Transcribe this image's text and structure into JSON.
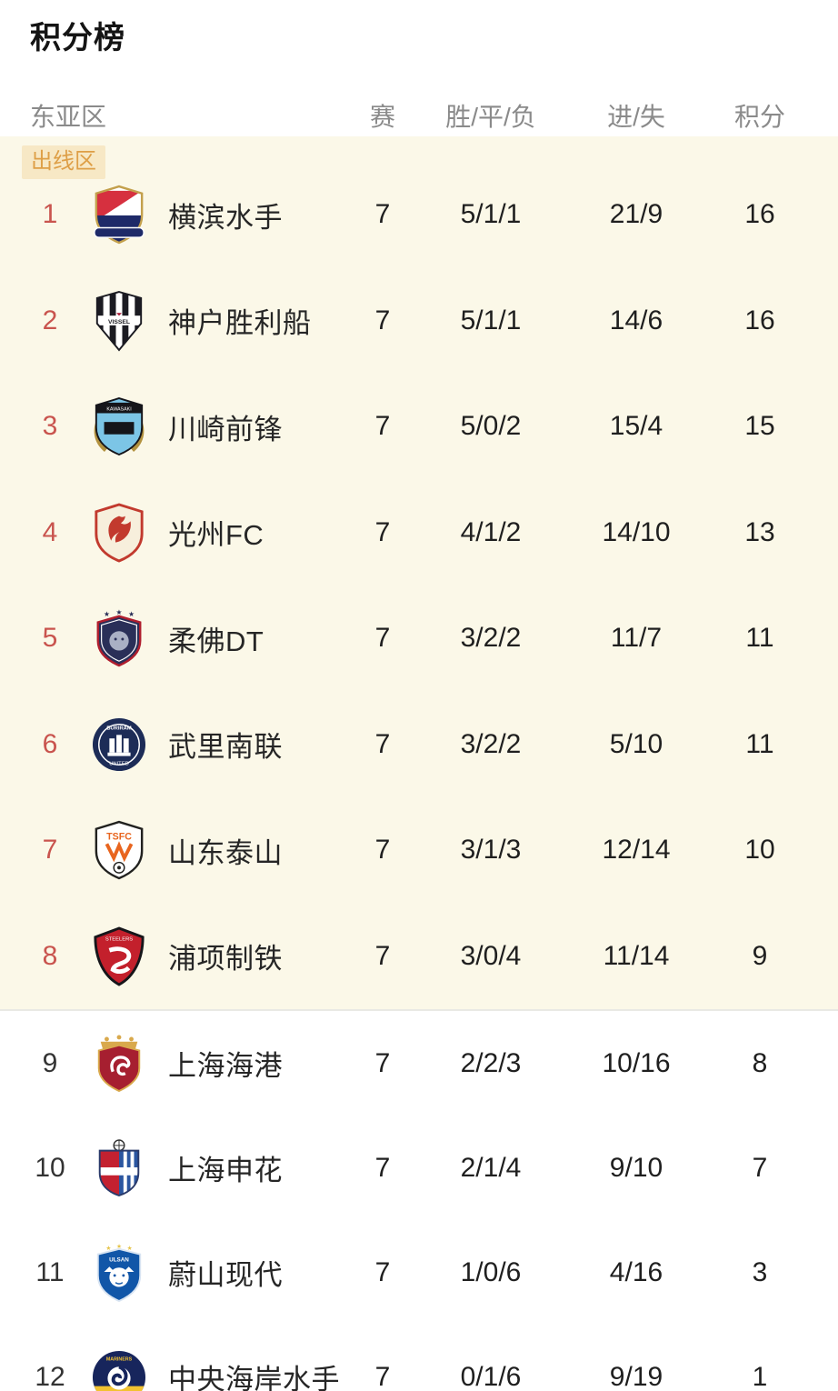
{
  "title": "积分榜",
  "header": {
    "region": "东亚区",
    "columns": [
      "赛",
      "胜/平/负",
      "进/失",
      "积分"
    ]
  },
  "zone_badge": "出线区",
  "colors": {
    "qualified_zone_bg": "#fbf8e8",
    "badge_bg": "#f7e8c5",
    "badge_text": "#de9f47",
    "rank_qualified": "#c9544e",
    "header_text": "#8a8a8a",
    "text_primary": "#262626"
  },
  "table": {
    "qualified_count": 8,
    "teams": [
      {
        "rank": "1",
        "name": "横滨水手",
        "played": "7",
        "wdl": "5/1/1",
        "goals": "21/9",
        "points": "16",
        "logo": {
          "variant": "diag",
          "colors": [
            "#d6303f",
            "#ffffff",
            "#1e2a68",
            "#c3a04c"
          ],
          "text": ""
        }
      },
      {
        "rank": "2",
        "name": "神户胜利船",
        "played": "7",
        "wdl": "5/1/1",
        "goals": "14/6",
        "points": "16",
        "logo": {
          "variant": "vstripes",
          "colors": [
            "#1b1b22",
            "#ffffff",
            "#a50f2d"
          ],
          "text": "VISSEL"
        }
      },
      {
        "rank": "3",
        "name": "川崎前锋",
        "played": "7",
        "wdl": "5/0/2",
        "goals": "15/4",
        "points": "15",
        "logo": {
          "variant": "wreath",
          "colors": [
            "#7cc5e6",
            "#15151a",
            "#b3923f"
          ],
          "text": "KAWASAKI"
        }
      },
      {
        "rank": "4",
        "name": "光州FC",
        "played": "7",
        "wdl": "4/1/2",
        "goals": "14/10",
        "points": "13",
        "logo": {
          "variant": "bird",
          "colors": [
            "#c23a2e",
            "#f7efdc"
          ],
          "text": ""
        }
      },
      {
        "rank": "5",
        "name": "柔佛DT",
        "played": "7",
        "wdl": "3/2/2",
        "goals": "11/7",
        "points": "11",
        "logo": {
          "variant": "tiger",
          "colors": [
            "#2a2f58",
            "#b01e2e",
            "#aab0c4"
          ],
          "text": ""
        }
      },
      {
        "rank": "6",
        "name": "武里南联",
        "played": "7",
        "wdl": "3/2/2",
        "goals": "5/10",
        "points": "11",
        "logo": {
          "variant": "castle",
          "colors": [
            "#1d2c57",
            "#ffffff"
          ],
          "text": "BURIRAM"
        }
      },
      {
        "rank": "7",
        "name": "山东泰山",
        "played": "7",
        "wdl": "3/1/3",
        "goals": "12/14",
        "points": "10",
        "logo": {
          "variant": "tsfc",
          "colors": [
            "#e8651f",
            "#ffffff",
            "#21211f"
          ],
          "text": "TSFC"
        }
      },
      {
        "rank": "8",
        "name": "浦项制铁",
        "played": "7",
        "wdl": "3/0/4",
        "goals": "11/14",
        "points": "9",
        "logo": {
          "variant": "sshield",
          "colors": [
            "#c3202c",
            "#16161a",
            "#ffffff"
          ],
          "text": "STEELERS"
        }
      },
      {
        "rank": "9",
        "name": "上海海港",
        "played": "7",
        "wdl": "2/2/3",
        "goals": "10/16",
        "points": "8",
        "logo": {
          "variant": "crown",
          "colors": [
            "#a61f30",
            "#d9a94c"
          ],
          "text": ""
        }
      },
      {
        "rank": "10",
        "name": "上海申花",
        "played": "7",
        "wdl": "2/1/4",
        "goals": "9/10",
        "points": "7",
        "logo": {
          "variant": "roundstripes",
          "colors": [
            "#c32130",
            "#2b56a0",
            "#ffffff"
          ],
          "text": ""
        }
      },
      {
        "rank": "11",
        "name": "蔚山现代",
        "played": "7",
        "wdl": "1/0/6",
        "goals": "4/16",
        "points": "3",
        "logo": {
          "variant": "tiger2",
          "colors": [
            "#1156a8",
            "#ffffff",
            "#e6c54d"
          ],
          "text": "ULSAN"
        }
      },
      {
        "rank": "12",
        "name": "中央海岸水手",
        "played": "7",
        "wdl": "0/1/6",
        "goals": "9/19",
        "points": "1",
        "logo": {
          "variant": "swirl",
          "colors": [
            "#17255c",
            "#f2c230"
          ],
          "text": "MARINERS"
        }
      }
    ]
  }
}
